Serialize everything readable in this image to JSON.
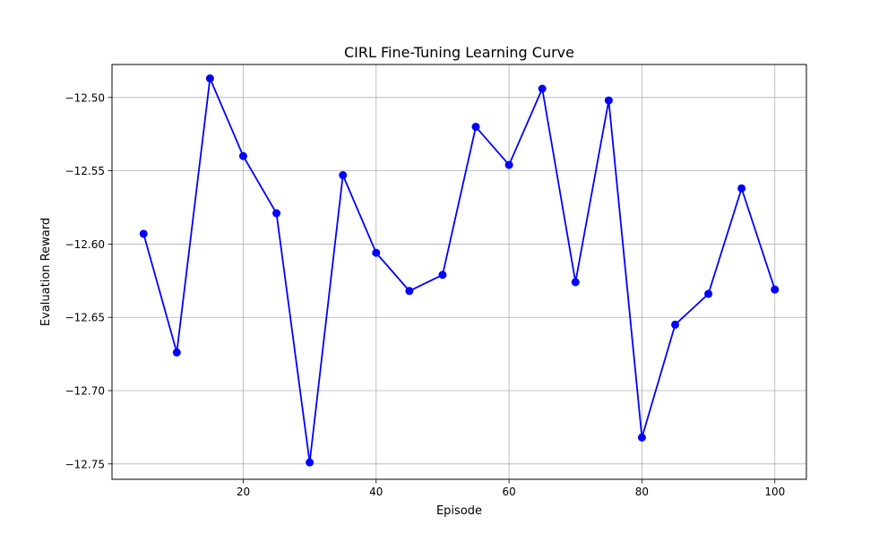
{
  "chart_data": {
    "type": "line",
    "title": "CIRL Fine-Tuning Learning Curve",
    "xlabel": "Episode",
    "ylabel": "Evaluation Reward",
    "xlim": [
      0.25,
      104.75
    ],
    "ylim": [
      -12.7605,
      -12.4775
    ],
    "xticks": [
      20,
      40,
      60,
      80,
      100
    ],
    "xtick_labels": [
      "20",
      "40",
      "60",
      "80",
      "100"
    ],
    "yticks": [
      -12.5,
      -12.55,
      -12.6,
      -12.65,
      -12.7,
      -12.75
    ],
    "ytick_labels": [
      "−12.50",
      "−12.55",
      "−12.60",
      "−12.65",
      "−12.70",
      "−12.75"
    ],
    "grid": true,
    "marker": "circle",
    "color": "#0000ff",
    "series": [
      {
        "x": [
          5,
          10,
          15,
          20,
          25,
          30,
          35,
          40,
          45,
          50,
          55,
          60,
          65,
          70,
          75,
          80,
          85,
          90,
          95,
          100
        ],
        "values": [
          -12.593,
          -12.674,
          -12.487,
          -12.54,
          -12.579,
          -12.749,
          -12.553,
          -12.606,
          -12.632,
          -12.621,
          -12.52,
          -12.546,
          -12.494,
          -12.626,
          -12.502,
          -12.732,
          -12.655,
          -12.634,
          -12.562,
          -12.631
        ]
      }
    ]
  }
}
